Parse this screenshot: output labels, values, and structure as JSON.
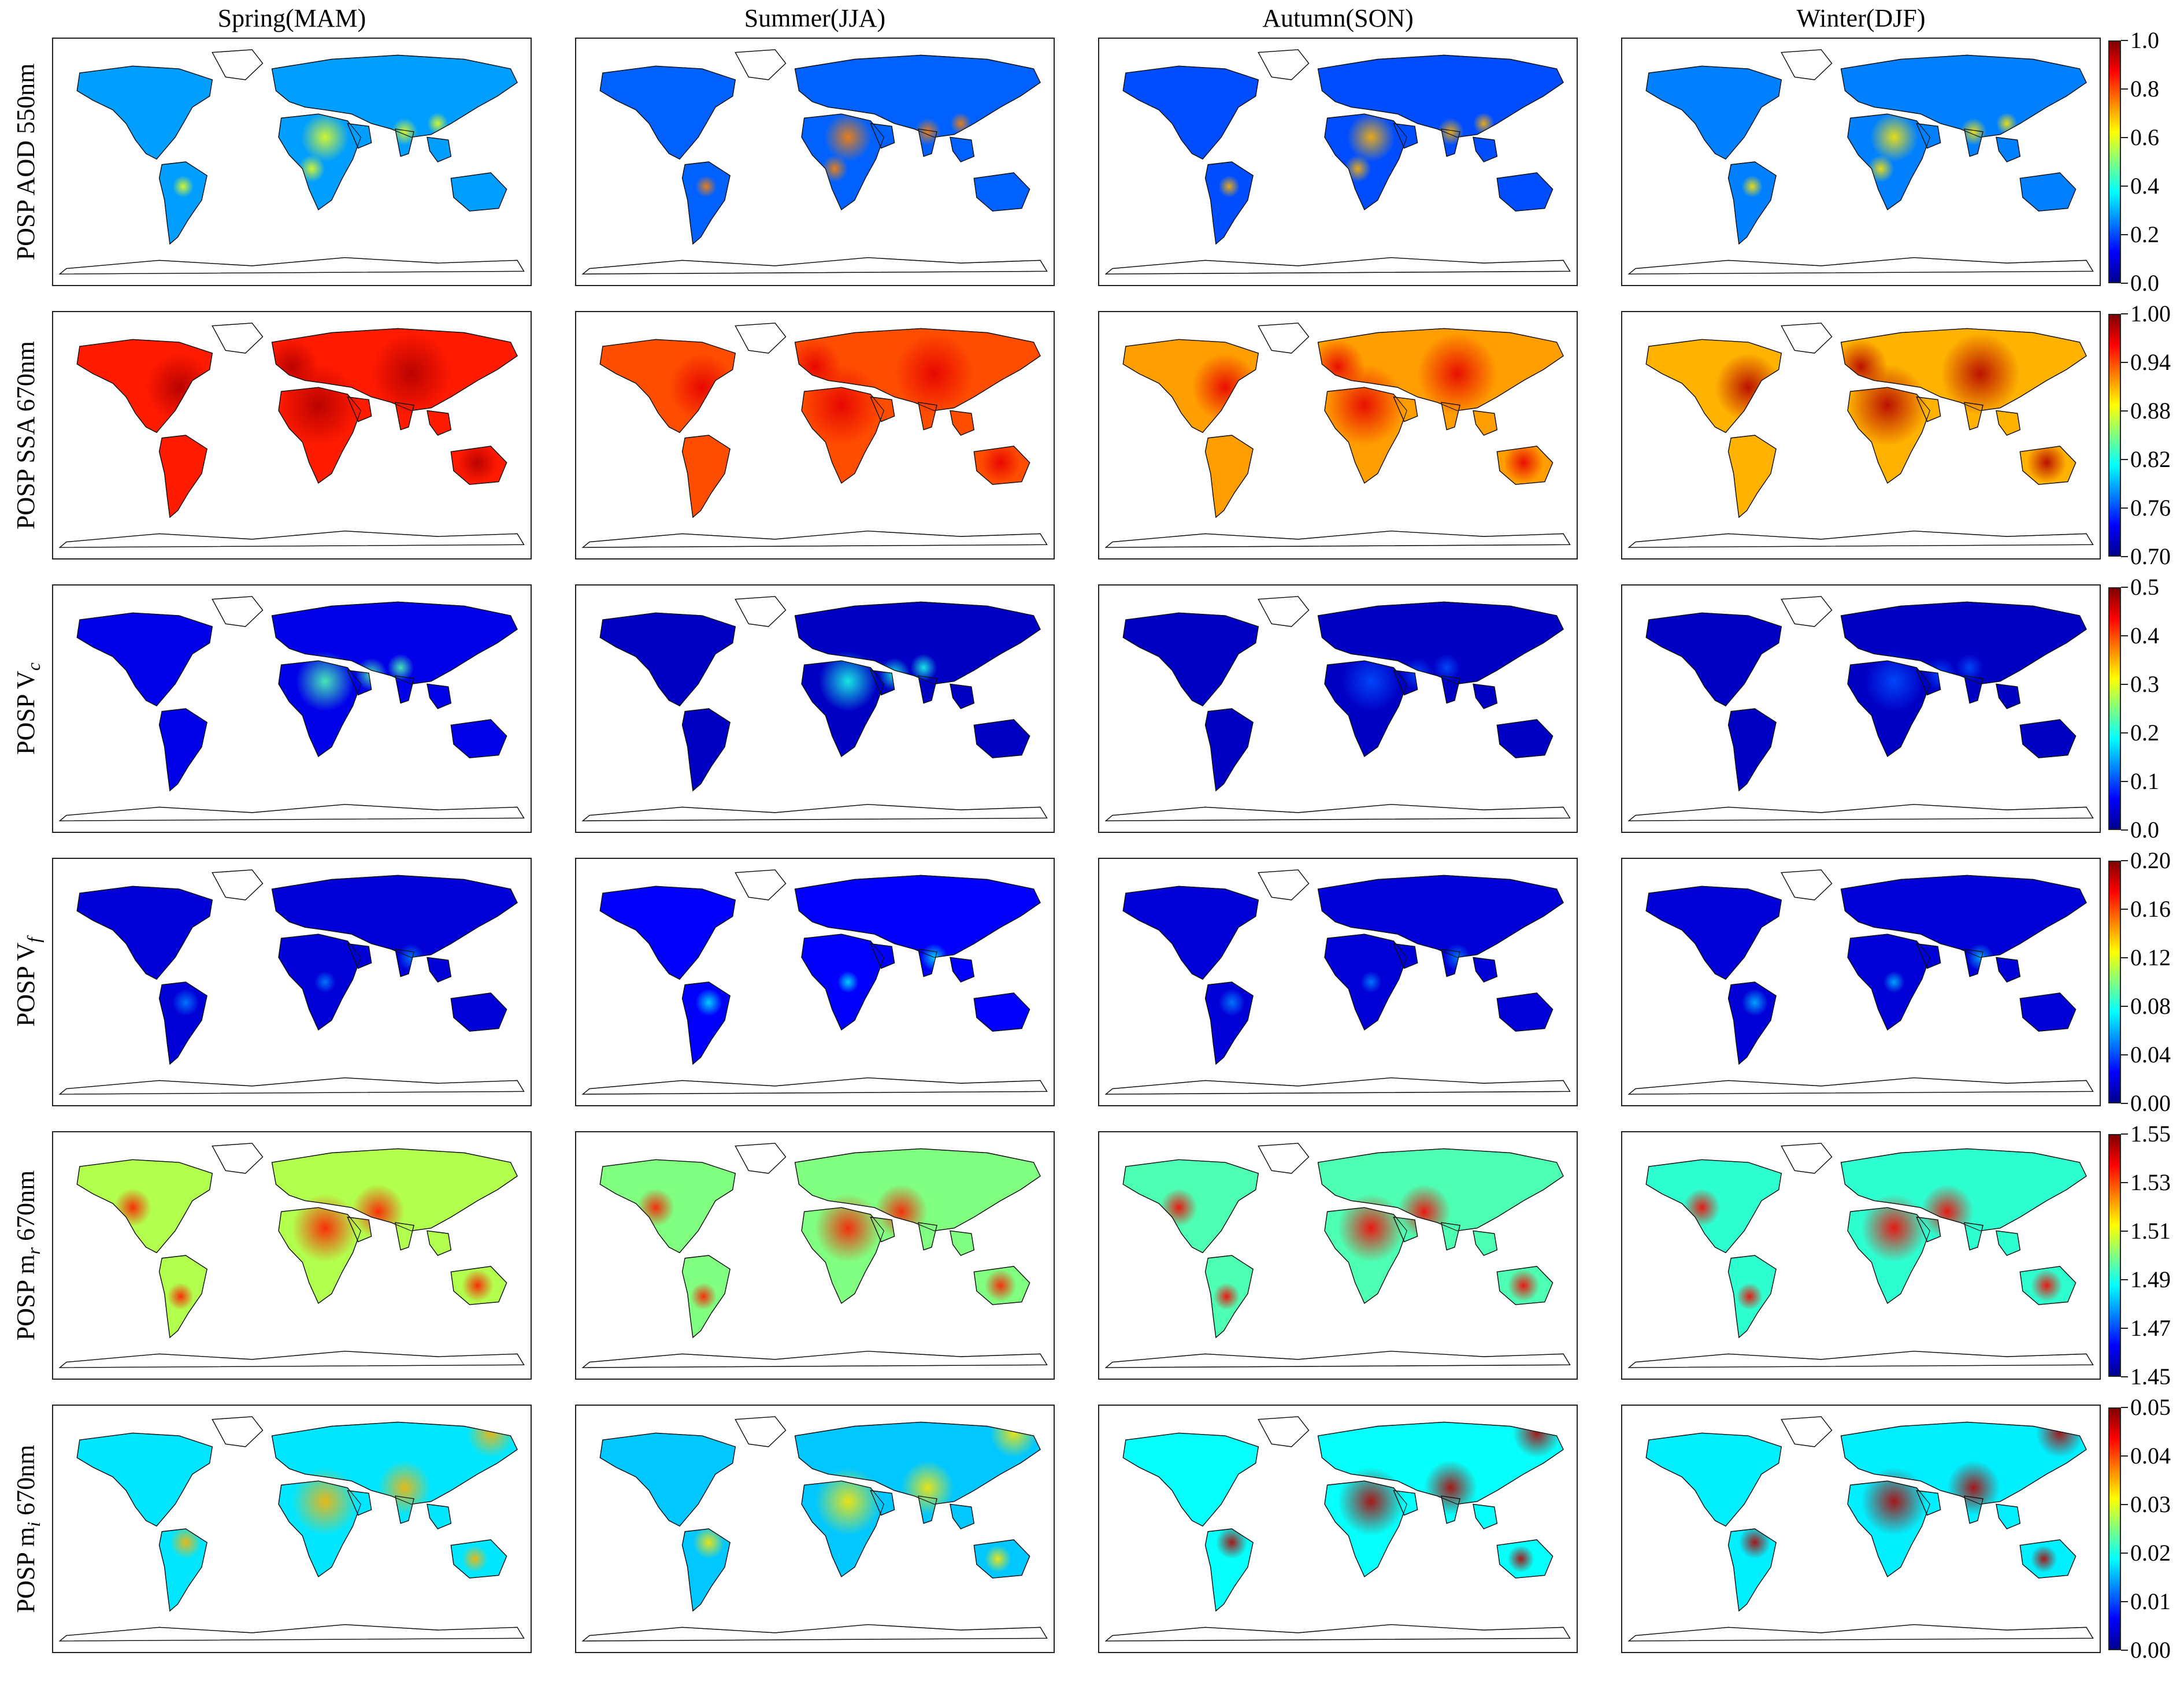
{
  "figure": {
    "columns": [
      "Spring(MAM)",
      "Summer(JJA)",
      "Autumn(SON)",
      "Winter(DJF)"
    ],
    "colormap": [
      "#00008f",
      "#0000ff",
      "#0080ff",
      "#00ffff",
      "#80ff80",
      "#ffff00",
      "#ff8000",
      "#ff0000",
      "#800000"
    ],
    "rows": [
      {
        "id": "aod",
        "label": {
          "main": "POSP AOD 550nm",
          "sub": ""
        },
        "colorbar_ticks": [
          "0.0",
          "0.2",
          "0.4",
          "0.6",
          "0.8",
          "1.0"
        ],
        "panels": [
          {
            "level": 0.28,
            "hotspot": 0.6
          },
          {
            "level": 0.22,
            "hotspot": 0.75
          },
          {
            "level": 0.2,
            "hotspot": 0.7
          },
          {
            "level": 0.25,
            "hotspot": 0.65
          }
        ]
      },
      {
        "id": "ssa",
        "label": {
          "main": "POSP SSA 670nm",
          "sub": ""
        },
        "colorbar_ticks": [
          "0.70",
          "0.76",
          "0.82",
          "0.88",
          "0.94",
          "1.00"
        ],
        "panels": [
          {
            "level": 0.85,
            "hotspot": 0.95
          },
          {
            "level": 0.8,
            "hotspot": 0.9
          },
          {
            "level": 0.72,
            "hotspot": 0.9
          },
          {
            "level": 0.7,
            "hotspot": 0.95
          }
        ]
      },
      {
        "id": "vc",
        "label": {
          "main": "POSP V",
          "sub": "c"
        },
        "colorbar_ticks": [
          "0.0",
          "0.1",
          "0.2",
          "0.3",
          "0.4",
          "0.5"
        ],
        "panels": [
          {
            "level": 0.1,
            "hotspot": 0.45
          },
          {
            "level": 0.06,
            "hotspot": 0.4
          },
          {
            "level": 0.06,
            "hotspot": 0.2
          },
          {
            "level": 0.06,
            "hotspot": 0.2
          }
        ]
      },
      {
        "id": "vf",
        "label": {
          "main": "POSP V",
          "sub": "f"
        },
        "colorbar_ticks": [
          "0.00",
          "0.04",
          "0.08",
          "0.12",
          "0.16",
          "0.20"
        ],
        "panels": [
          {
            "level": 0.08,
            "hotspot": 0.25
          },
          {
            "level": 0.12,
            "hotspot": 0.35
          },
          {
            "level": 0.08,
            "hotspot": 0.25
          },
          {
            "level": 0.08,
            "hotspot": 0.3
          }
        ]
      },
      {
        "id": "mr",
        "label": {
          "main": "POSP m",
          "sub": "r",
          "suffix": " 670nm"
        },
        "colorbar_ticks": [
          "1.45",
          "1.47",
          "1.49",
          "1.51",
          "1.53",
          "1.55"
        ],
        "panels": [
          {
            "level": 0.55,
            "hotspot": 0.85
          },
          {
            "level": 0.5,
            "hotspot": 0.85
          },
          {
            "level": 0.45,
            "hotspot": 0.88
          },
          {
            "level": 0.42,
            "hotspot": 0.88
          }
        ]
      },
      {
        "id": "mi",
        "label": {
          "main": "POSP m",
          "sub": "i",
          "suffix": " 670nm"
        },
        "colorbar_ticks": [
          "0.00",
          "0.01",
          "0.02",
          "0.03",
          "0.04",
          "0.05"
        ],
        "panels": [
          {
            "level": 0.35,
            "hotspot": 0.7
          },
          {
            "level": 0.32,
            "hotspot": 0.65
          },
          {
            "level": 0.38,
            "hotspot": 0.95
          },
          {
            "level": 0.36,
            "hotspot": 0.95
          }
        ]
      }
    ]
  }
}
